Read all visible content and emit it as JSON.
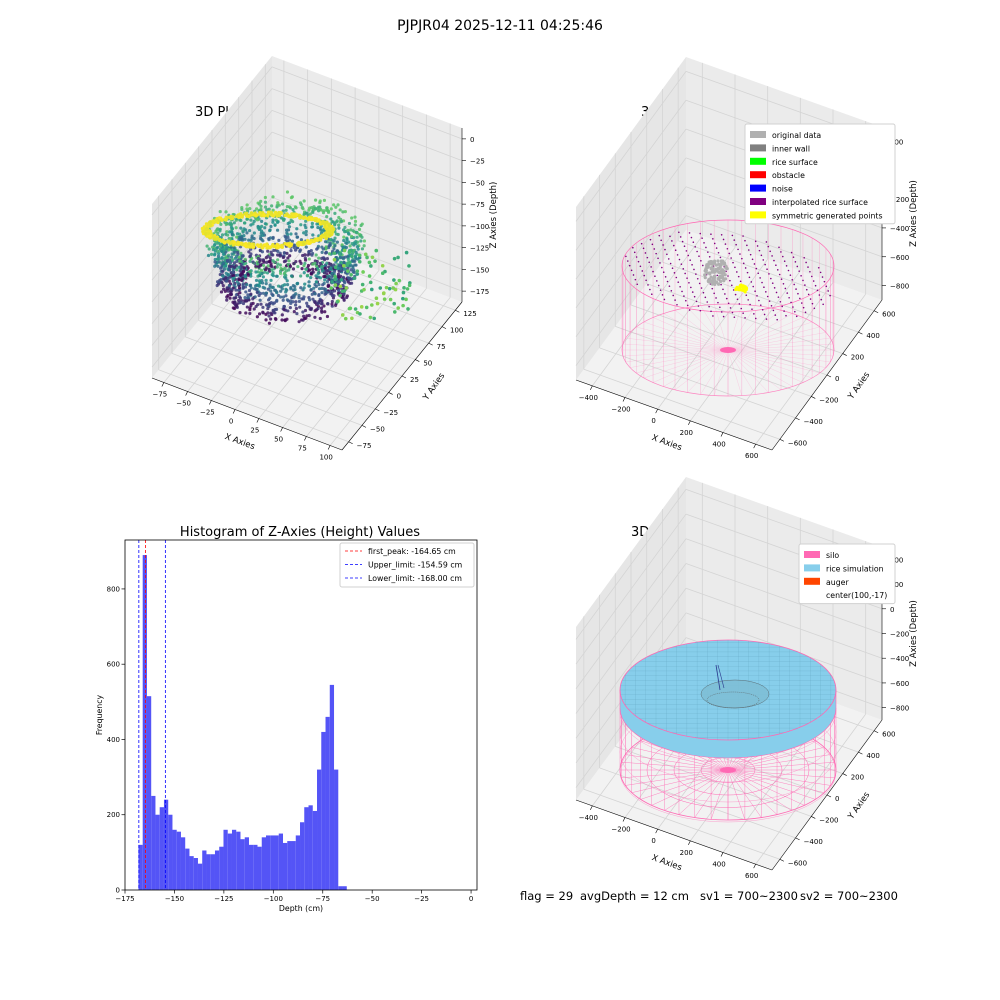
{
  "figure": {
    "suptitle": "PJPJR04 2025-12-11 04:25:46",
    "status": {
      "flag": "flag = 29",
      "avg_depth": "avgDepth = 12 cm",
      "sv1": "sv1 = 700~2300",
      "sv2": "sv2 = 700~2300"
    }
  },
  "colors": {
    "hist_bar": "#4b4bf5",
    "first_peak": "#ff0000",
    "limits": "#0000ff",
    "silo": "#ff69b4",
    "rice_simulation": "#87ceeb",
    "auger": "#ff4500",
    "original_data": "#b0b0b0",
    "inner_wall": "#808080",
    "rice_surface": "#00ff00",
    "obstacle": "#ff0000",
    "noise": "#0000ff",
    "interpolated_rice_surface": "#800080",
    "symmetric_generated_points": "#ffff00"
  },
  "chart_data": [
    {
      "type": "scatter",
      "title": "3D Plot of Silo Interior(row data)",
      "xlabel": "X Axies",
      "ylabel": "Y Axies",
      "zlabel": "Z Axies (Depth)",
      "x_ticks": [
        "−75",
        "−50",
        "−25",
        "0",
        "25",
        "50",
        "75",
        "100"
      ],
      "y_ticks": [
        "−75",
        "−50",
        "−25",
        "0",
        "25",
        "50",
        "75",
        "100",
        "125"
      ],
      "z_ticks": [
        "0",
        "−25",
        "−50",
        "−75",
        "−100",
        "−125",
        "−150",
        "−175"
      ],
      "xlim": [
        -75,
        100
      ],
      "ylim": [
        -75,
        125
      ],
      "zlim": [
        -175,
        0
      ],
      "colormap": "viridis"
    },
    {
      "type": "scatter",
      "title": "3D classify of Silo Interior",
      "xlabel": "X Axies",
      "ylabel": "Y Axies",
      "zlabel": "Z Axies (Depth)",
      "x_ticks": [
        "−400",
        "−200",
        "0",
        "200",
        "400",
        "600"
      ],
      "y_ticks": [
        "−600",
        "−400",
        "−200",
        "0",
        "200",
        "400",
        "600"
      ],
      "z_ticks": [
        "200",
        "0",
        "−200",
        "−400",
        "−600",
        "−800"
      ],
      "z_tick_partial": "00",
      "legend_position": "upper right",
      "legend": [
        {
          "label": "original data",
          "color": "#b0b0b0"
        },
        {
          "label": "inner wall",
          "color": "#808080"
        },
        {
          "label": "rice surface",
          "color": "#00ff00"
        },
        {
          "label": "obstacle",
          "color": "#ff0000"
        },
        {
          "label": "noise",
          "color": "#0000ff"
        },
        {
          "label": "interpolated rice surface",
          "color": "#800080"
        },
        {
          "label": "symmetric generated points",
          "color": "#ffff00"
        }
      ]
    },
    {
      "type": "bar",
      "title": "Histogram of Z-Axies (Height) Values",
      "xlabel": "Depth (cm)",
      "ylabel": "Frequency",
      "xlim": [
        -175,
        3
      ],
      "ylim": [
        0,
        930
      ],
      "x_ticks": [
        -175,
        -150,
        -125,
        -100,
        -75,
        -50,
        -25,
        0
      ],
      "x_tick_labels": [
        "−175",
        "−150",
        "−125",
        "−100",
        "−75",
        "−50",
        "−25",
        "0"
      ],
      "y_ticks": [
        0,
        200,
        400,
        600,
        800
      ],
      "y_tick_labels": [
        "0",
        "200",
        "400",
        "600",
        "800"
      ],
      "bins": {
        "start": -168.2,
        "width": 2.15
      },
      "values": [
        120,
        890,
        515,
        250,
        200,
        220,
        240,
        200,
        160,
        155,
        140,
        110,
        90,
        85,
        70,
        105,
        95,
        95,
        105,
        115,
        160,
        150,
        160,
        155,
        135,
        140,
        120,
        120,
        115,
        140,
        145,
        145,
        145,
        150,
        125,
        130,
        130,
        145,
        180,
        220,
        225,
        210,
        320,
        420,
        460,
        545,
        320,
        10,
        10
      ],
      "vlines": [
        {
          "label": "first_peak: -164.65 cm",
          "x": -164.65,
          "color": "#ff0000"
        },
        {
          "label": "Upper_limit: -154.59 cm",
          "x": -154.59,
          "color": "#0000ff"
        },
        {
          "label": "Lower_limit: -168.00 cm",
          "x": -168.0,
          "color": "#0000ff"
        }
      ],
      "legend_position": "upper right"
    },
    {
      "type": "scatter",
      "title": "3D simulation of Silo Interior",
      "xlabel": "X Axies",
      "ylabel": "Y Axies",
      "zlabel": "Z Axies (Depth)",
      "x_ticks": [
        "−400",
        "−200",
        "0",
        "200",
        "400",
        "600"
      ],
      "y_ticks": [
        "−600",
        "−400",
        "−200",
        "0",
        "200",
        "400",
        "600"
      ],
      "z_ticks": [
        "400",
        "200",
        "0",
        "−200",
        "−400",
        "−600",
        "−800"
      ],
      "legend_position": "upper right",
      "legend": [
        {
          "label": "silo",
          "color": "#ff69b4"
        },
        {
          "label": "rice simulation",
          "color": "#87ceeb"
        },
        {
          "label": "auger",
          "color": "#ff4500"
        },
        {
          "label": "center(100,-17)",
          "color": ""
        }
      ]
    }
  ]
}
